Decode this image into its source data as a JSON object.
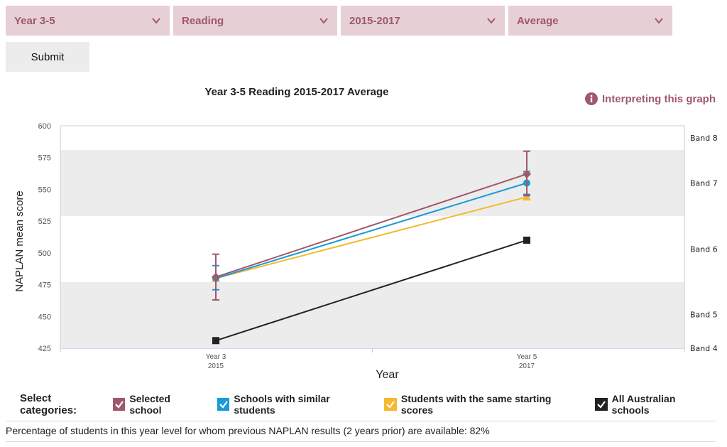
{
  "filters": [
    {
      "label": "Year 3-5"
    },
    {
      "label": "Reading"
    },
    {
      "label": "2015-2017"
    },
    {
      "label": "Average"
    }
  ],
  "submit_label": "Submit",
  "interpreting_label": "Interpreting this graph",
  "legend": {
    "title": "Select categories:",
    "items": [
      {
        "label": "Selected school",
        "color": "#a0586b"
      },
      {
        "label": "Schools with similar students",
        "color": "#1a9ad6"
      },
      {
        "label": "Students with the same starting scores",
        "color": "#f5b82e"
      },
      {
        "label": "All Australian schools",
        "color": "#222222"
      }
    ]
  },
  "footer": "Percentage of students in this year level for whom previous NAPLAN results (2 years prior) are available: 82%",
  "chart_data": {
    "type": "line",
    "title": "Year 3-5 Reading 2015-2017 Average",
    "xlabel": "Year",
    "ylabel": "NAPLAN mean score",
    "ylim": [
      425,
      600
    ],
    "yticks": [
      425,
      450,
      475,
      500,
      525,
      550,
      575,
      600
    ],
    "categories": [
      {
        "line1": "Year 3",
        "line2": "2015"
      },
      {
        "line1": "Year 5",
        "line2": "2017"
      }
    ],
    "bands": [
      {
        "label": "Band 8",
        "from": 581,
        "to": 600,
        "shaded": false
      },
      {
        "label": "Band 7",
        "from": 529,
        "to": 581,
        "shaded": true
      },
      {
        "label": "Band 6",
        "from": 477,
        "to": 529,
        "shaded": false
      },
      {
        "label": "Band 5",
        "from": 426,
        "to": 477,
        "shaded": true
      },
      {
        "label": "Band 4",
        "from": 425,
        "to": 426,
        "shaded": false
      }
    ],
    "series": [
      {
        "name": "Selected school",
        "color": "#a0586b",
        "marker": "diamond",
        "values": [
          481,
          562
        ],
        "err_low": [
          463,
          545
        ],
        "err_high": [
          499,
          580
        ]
      },
      {
        "name": "Schools with similar students",
        "color": "#1a9ad6",
        "marker": "circle",
        "values": [
          480,
          555
        ],
        "err_low": [
          471,
          546
        ],
        "err_high": [
          490,
          564
        ]
      },
      {
        "name": "Students with the same starting scores",
        "color": "#f5b82e",
        "marker": "triangle",
        "values": [
          480,
          544
        ]
      },
      {
        "name": "All Australian schools",
        "color": "#222222",
        "marker": "square",
        "values": [
          431,
          510
        ]
      }
    ]
  }
}
